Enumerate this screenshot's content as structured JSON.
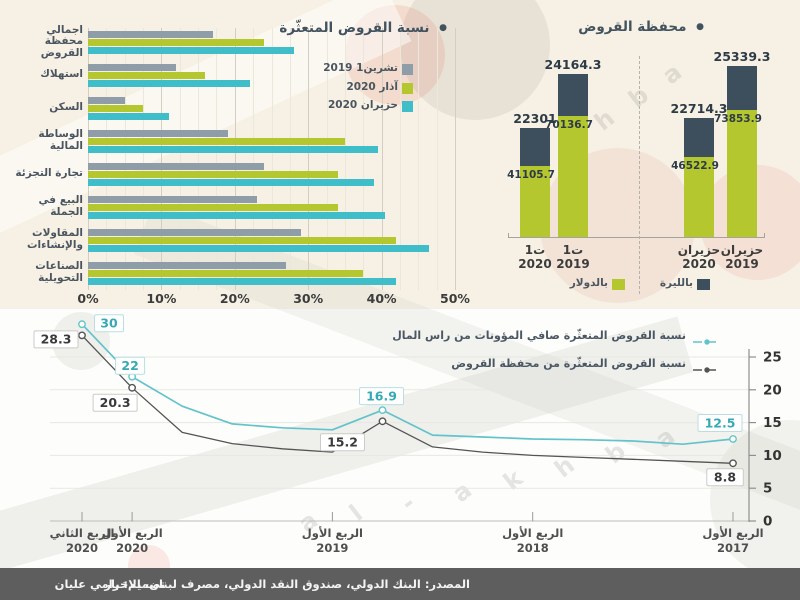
{
  "colors": {
    "teal": "#3fbec9",
    "green": "#b5c72e",
    "gray": "#8e9da7",
    "navy": "#3d4f5d",
    "teal_line": "#63c3cb",
    "dark_line": "#545454",
    "title_text": "#42525e",
    "background_top": "#f6f1e4",
    "background_panel": "#fdfdfb",
    "footer_bg": "#5e5e5e",
    "grid_major": "#d2cfc2",
    "grid_minor": "#eae7db",
    "axis_text": "#3c3c3c",
    "label_text": "#4a5560",
    "accent_red": "#e1574f"
  },
  "watermark_text": "al-akhbar",
  "footer": {
    "source": "المصدر: البنك الدولي، صندوق النقد الدولي، مصرف لبنان، الاخبار",
    "design": "تصميم: رامي عليان"
  },
  "chart_data": [
    {
      "id": "npl-by-sector",
      "type": "bar",
      "orientation": "horizontal",
      "title": "نسبة القروض المتعثّرة",
      "categories": [
        [
          "اجمالي",
          "محفظة",
          "القروض"
        ],
        [
          "استهلاك"
        ],
        [
          "السكن"
        ],
        [
          "الوساطة",
          "المالية"
        ],
        [
          "تجارة التجزئة"
        ],
        [
          "البيع في",
          "الجملة"
        ],
        [
          "المقاولات",
          "والإنشاءات"
        ],
        [
          "الصناعات",
          "التحويلية"
        ]
      ],
      "series": [
        {
          "name": "تشرين1 2019",
          "color_key": "gray",
          "values": [
            17,
            12,
            5,
            19,
            24,
            23,
            29,
            27
          ]
        },
        {
          "name": "آذار 2020",
          "color_key": "green",
          "values": [
            24,
            16,
            7.5,
            35,
            34,
            34,
            42,
            37.5
          ]
        },
        {
          "name": "حزيران 2020",
          "color_key": "teal",
          "values": [
            28,
            22,
            11,
            39.5,
            39,
            40.5,
            46.5,
            42
          ]
        }
      ],
      "xlim": [
        0,
        50
      ],
      "x_tick_labels": [
        "0%",
        "10%",
        "20%",
        "30%",
        "40%",
        "50%"
      ],
      "unit": "%"
    },
    {
      "id": "loan-portfolio",
      "type": "bar",
      "stacked": true,
      "title": "محفظة القروض",
      "categories": [
        [
          "ت1",
          "2020"
        ],
        [
          "ت1",
          "2019"
        ],
        [
          "حزيران",
          "2020"
        ],
        [
          "حزيران",
          "2019"
        ]
      ],
      "series": [
        {
          "name": "بالدولار",
          "color_key": "green",
          "values": [
            41105.7,
            70136.7,
            46522.9,
            73853.9
          ]
        },
        {
          "name": "بالليرة",
          "color_key": "navy",
          "values": [
            22301,
            24164.3,
            22714.3,
            25339.3
          ]
        }
      ],
      "value_labels": {
        "dollar": [
          "41105.7",
          "70136.7",
          "46522.9",
          "73853.9"
        ],
        "lira": [
          "22301",
          "24164.3",
          "22714.3",
          "25339.3"
        ]
      }
    },
    {
      "id": "npl-trend",
      "type": "line",
      "series": [
        {
          "name": "نسبة القروض المتعثّرة صافي المؤونات من راس المال",
          "color_key": "teal_line",
          "values": [
            30,
            22,
            17.5,
            14.8,
            14.2,
            13.9,
            16.9,
            13.1,
            12.8,
            12.5,
            12.4,
            12.2,
            11.7,
            12.5
          ]
        },
        {
          "name": "نسبة القروض المتعثّرة من محفظة القروض",
          "color_key": "dark_line",
          "values": [
            28.3,
            20.3,
            13.5,
            11.8,
            11,
            10.5,
            15.2,
            11.3,
            10.5,
            10,
            9.7,
            9.4,
            9.1,
            8.8
          ]
        }
      ],
      "x_note": "quarterly, time runs right-to-left from 2017Q1 (right) to 2020Q2 (left)",
      "x_ticks": [
        {
          "index": 0,
          "lines": [
            "الربع الثاني",
            "2020"
          ]
        },
        {
          "index": 1,
          "lines": [
            "الربع الأول",
            "2020"
          ]
        },
        {
          "index": 5,
          "lines": [
            "الربع الأول",
            "2019"
          ]
        },
        {
          "index": 9,
          "lines": [
            "الربع الأول",
            "2018"
          ]
        },
        {
          "index": 13,
          "lines": [
            "الربع الأول",
            "2017"
          ]
        }
      ],
      "ylim": [
        0,
        27
      ],
      "y_ticks": [
        0,
        5,
        10,
        15,
        20,
        25
      ],
      "marker_indices": [
        0,
        1,
        6,
        13
      ],
      "point_labels": [
        {
          "series": 0,
          "index": 0,
          "text": "30"
        },
        {
          "series": 1,
          "index": 0,
          "text": "28.3"
        },
        {
          "series": 0,
          "index": 1,
          "text": "22"
        },
        {
          "series": 1,
          "index": 1,
          "text": "20.3"
        },
        {
          "series": 0,
          "index": 6,
          "text": "16.9"
        },
        {
          "series": 1,
          "index": 6,
          "text": "15.2"
        },
        {
          "series": 0,
          "index": 13,
          "text": "12.5"
        },
        {
          "series": 1,
          "index": 13,
          "text": "8.8"
        }
      ]
    }
  ]
}
